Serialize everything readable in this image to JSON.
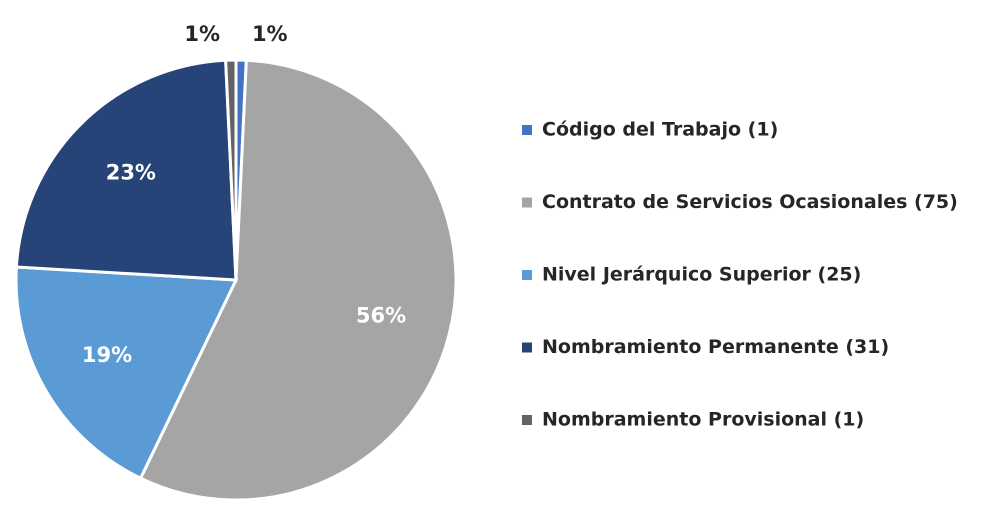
{
  "chart_data": {
    "type": "pie",
    "categories": [
      "Código del Trabajo (1)",
      "Contrato de Servicios Ocasionales (75)",
      "Nivel Jerárquico Superior (25)",
      "Nombramiento Permanente (31)",
      "Nombramiento Provisional (1)"
    ],
    "values": [
      0.75,
      56.39,
      18.8,
      23.31,
      0.75
    ],
    "value_labels": [
      "1%",
      "56%",
      "19%",
      "23%",
      "1%"
    ],
    "colors": [
      "#4472c4",
      "#a5a5a5",
      "#5b9bd5",
      "#264478",
      "#636363"
    ],
    "legend": "right"
  }
}
